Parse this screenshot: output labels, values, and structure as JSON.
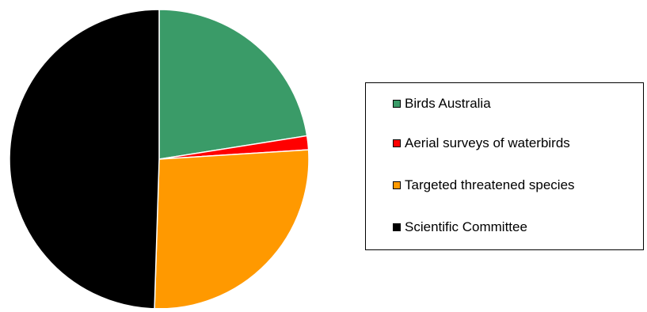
{
  "chart_data": {
    "type": "pie",
    "title": "",
    "slices": [
      {
        "label": "Birds Australia",
        "value": 22.5,
        "color": "#3a9b68"
      },
      {
        "label": "Aerial surveys of waterbirds",
        "value": 1.5,
        "color": "#ff0000"
      },
      {
        "label": "Targeted threatened species",
        "value": 26.5,
        "color": "#ff9900"
      },
      {
        "label": "Scientific Committee",
        "value": 49.5,
        "color": "#000000"
      }
    ],
    "start_angle": "12 o'clock",
    "direction": "clockwise",
    "legend": "right"
  }
}
